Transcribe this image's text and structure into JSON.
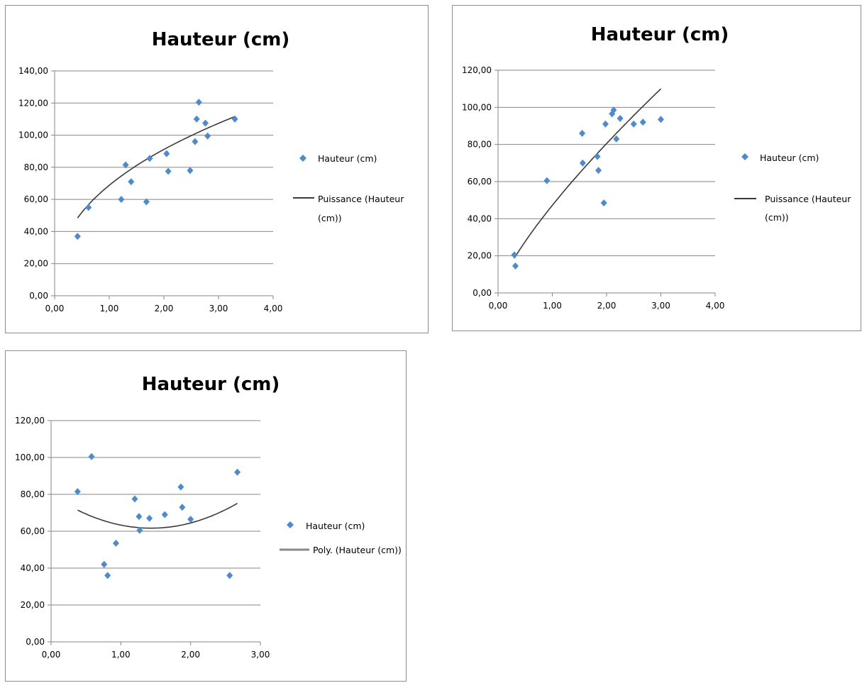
{
  "colors": {
    "marker": "#4F8ACB",
    "trendline": "#3a3a3a",
    "gridline": "#868686",
    "axis": "#868686"
  },
  "chart_data": [
    {
      "type": "scatter",
      "title": "Hauteur (cm)",
      "xlabel": "",
      "ylabel": "",
      "xlim": [
        0,
        4
      ],
      "ylim": [
        0,
        140
      ],
      "x_ticks": [
        "0,00",
        "1,00",
        "2,00",
        "3,00",
        "4,00"
      ],
      "y_ticks": [
        "0,00",
        "20,00",
        "40,00",
        "60,00",
        "80,00",
        "100,00",
        "120,00",
        "140,00"
      ],
      "grid": "horizontal",
      "legend_position": "right",
      "series": [
        {
          "name": "Hauteur (cm)",
          "marker": "diamond",
          "points": [
            [
              0.42,
              37
            ],
            [
              0.62,
              55
            ],
            [
              1.22,
              60
            ],
            [
              1.3,
              81.5
            ],
            [
              1.4,
              71
            ],
            [
              1.68,
              58.5
            ],
            [
              1.74,
              85.5
            ],
            [
              2.05,
              88.5
            ],
            [
              2.08,
              77.5
            ],
            [
              2.48,
              78
            ],
            [
              2.57,
              96
            ],
            [
              2.6,
              110
            ],
            [
              2.64,
              120.5
            ],
            [
              2.76,
              107.5
            ],
            [
              2.8,
              99.5
            ],
            [
              3.3,
              110
            ]
          ]
        }
      ],
      "trendline": {
        "name": "Puissance (Hauteur (cm))",
        "legend_lines": [
          "Puissance (Hauteur",
          "(cm))"
        ],
        "kind": "power",
        "a": 68.8,
        "b": 0.405,
        "x_range": [
          0.42,
          3.3
        ]
      }
    },
    {
      "type": "scatter",
      "title": "Hauteur (cm)",
      "xlabel": "",
      "ylabel": "",
      "xlim": [
        0,
        4
      ],
      "ylim": [
        0,
        120
      ],
      "x_ticks": [
        "0,00",
        "1,00",
        "2,00",
        "3,00",
        "4,00"
      ],
      "y_ticks": [
        "0,00",
        "20,00",
        "40,00",
        "60,00",
        "80,00",
        "100,00",
        "120,00"
      ],
      "grid": "horizontal",
      "legend_position": "right",
      "series": [
        {
          "name": "Hauteur (cm)",
          "marker": "diamond",
          "points": [
            [
              0.3,
              20.5
            ],
            [
              0.32,
              14.5
            ],
            [
              0.9,
              60.5
            ],
            [
              1.55,
              86
            ],
            [
              1.56,
              70
            ],
            [
              1.83,
              73.5
            ],
            [
              1.85,
              66
            ],
            [
              1.95,
              48.5
            ],
            [
              1.98,
              91
            ],
            [
              2.1,
              96.5
            ],
            [
              2.13,
              98.5
            ],
            [
              2.18,
              83
            ],
            [
              2.25,
              94
            ],
            [
              2.5,
              91
            ],
            [
              2.67,
              92
            ],
            [
              3,
              93.5
            ]
          ]
        }
      ],
      "trendline": {
        "name": "Puissance (Hauteur (cm))",
        "legend_lines": [
          "Puissance (Hauteur",
          "(cm))"
        ],
        "kind": "power",
        "a": 47.2,
        "b": 0.77,
        "x_range": [
          0.3,
          3
        ]
      }
    },
    {
      "type": "scatter",
      "title": "Hauteur (cm)",
      "xlabel": "",
      "ylabel": "",
      "xlim": [
        0,
        3
      ],
      "ylim": [
        0,
        120
      ],
      "x_ticks": [
        "0,00",
        "1,00",
        "2,00",
        "3,00"
      ],
      "y_ticks": [
        "0,00",
        "20,00",
        "40,00",
        "60,00",
        "80,00",
        "100,00",
        "120,00"
      ],
      "grid": "horizontal",
      "legend_position": "right",
      "series": [
        {
          "name": "Hauteur (cm)",
          "marker": "diamond",
          "points": [
            [
              0.38,
              81.5
            ],
            [
              0.58,
              100.5
            ],
            [
              0.76,
              42
            ],
            [
              0.81,
              36
            ],
            [
              0.93,
              53.5
            ],
            [
              1.2,
              77.5
            ],
            [
              1.26,
              68
            ],
            [
              1.27,
              60.5
            ],
            [
              1.41,
              67
            ],
            [
              1.63,
              69
            ],
            [
              1.86,
              84
            ],
            [
              1.88,
              73
            ],
            [
              2,
              66.5
            ],
            [
              2.56,
              36
            ],
            [
              2.67,
              92
            ]
          ]
        }
      ],
      "trendline": {
        "name": "Poly. (Hauteur (cm))",
        "legend_lines": [
          "Poly. (Hauteur (cm))"
        ],
        "kind": "poly2",
        "coef": [
          79.8,
          -25.3,
          8.82
        ],
        "x_range": [
          0.38,
          2.67
        ]
      }
    }
  ]
}
